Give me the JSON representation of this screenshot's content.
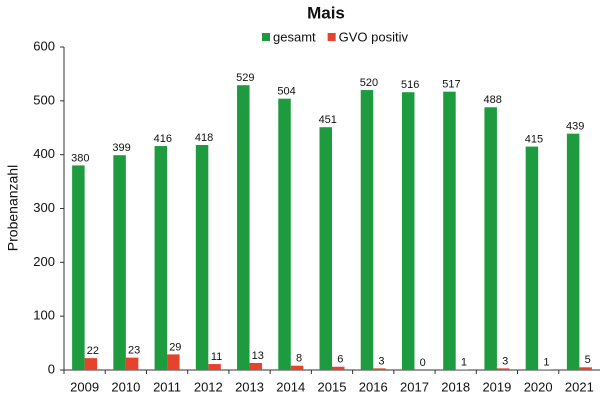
{
  "chart_data": {
    "type": "bar",
    "title": "Mais",
    "y_label": "Probenanzahl",
    "categories": [
      "2009",
      "2010",
      "2011",
      "2012",
      "2013",
      "2014",
      "2015",
      "2016",
      "2017",
      "2018",
      "2019",
      "2020",
      "2021"
    ],
    "series": [
      {
        "name": "gesamt",
        "color": "#1e9b3e",
        "values": [
          380,
          399,
          416,
          418,
          529,
          504,
          451,
          520,
          516,
          517,
          488,
          415,
          439
        ]
      },
      {
        "name": "GVO positiv",
        "color": "#e5432c",
        "values": [
          22,
          23,
          29,
          11,
          13,
          8,
          6,
          3,
          0,
          1,
          3,
          1,
          5
        ]
      }
    ],
    "ylim": [
      0,
      600
    ],
    "yticks": [
      0,
      100,
      200,
      300,
      400,
      500,
      600
    ],
    "grid": false,
    "legend": "top"
  }
}
